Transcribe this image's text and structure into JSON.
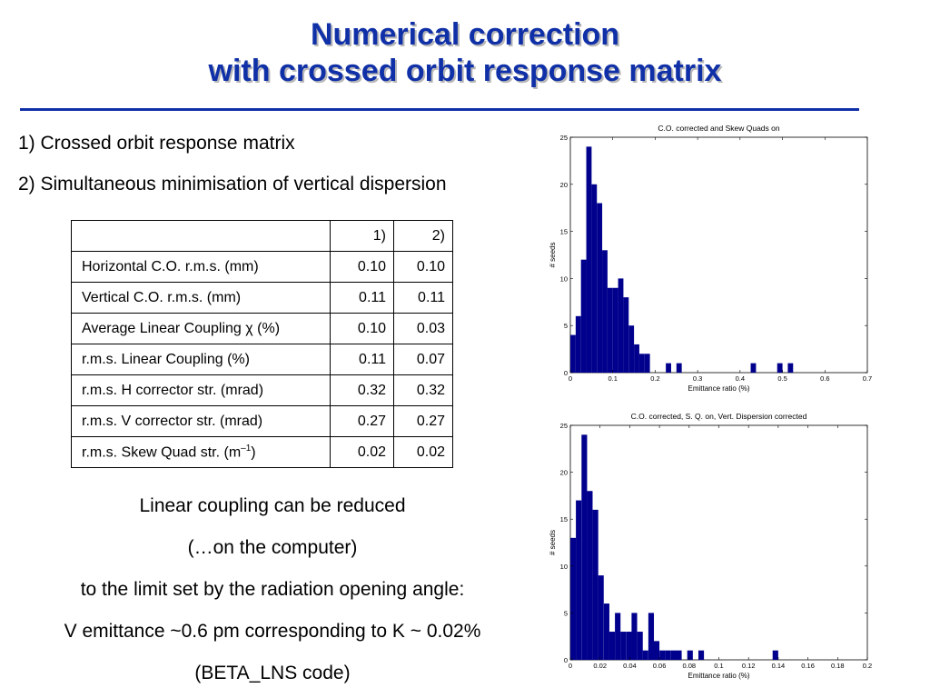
{
  "title": {
    "line1": "Numerical correction",
    "line2": "with crossed orbit response matrix"
  },
  "items": [
    "1) Crossed orbit response matrix",
    "2) Simultaneous minimisation of vertical dispersion"
  ],
  "table": {
    "headers": [
      "",
      "1)",
      "2)"
    ],
    "rows": [
      {
        "label": "Horizontal C.O. r.m.s. (mm)",
        "v1": "0.10",
        "v2": "0.10"
      },
      {
        "label": "Vertical C.O. r.m.s. (mm)",
        "v1": "0.11",
        "v2": "0.11"
      },
      {
        "label_pre": "Average Linear Coupling ",
        "label_sym": "χ",
        "label_post": " (%)",
        "v1": "0.10",
        "v2": "0.03"
      },
      {
        "label": "r.m.s. Linear Coupling (%)",
        "v1": "0.11",
        "v2": "0.07"
      },
      {
        "label": "r.m.s. H corrector str. (mrad)",
        "v1": "0.32",
        "v2": "0.32"
      },
      {
        "label": "r.m.s. V corrector str. (mrad)",
        "v1": "0.27",
        "v2": "0.27"
      },
      {
        "label_pre": "r.m.s. Skew Quad str. (m",
        "label_sup": "–1",
        "label_post": ")",
        "v1": "0.02",
        "v2": "0.02"
      }
    ]
  },
  "conclusion": [
    "Linear coupling can be reduced",
    "(…on the computer)",
    "to the limit set by the radiation opening angle:",
    "V emittance ~0.6 pm corresponding to K ~ 0.02%",
    "(BETA_LNS code)"
  ],
  "chart_data": [
    {
      "type": "bar",
      "title": "C.O. corrected and Skew Quads on",
      "xlabel": "Emittance ratio (%)",
      "ylabel": "# seeds",
      "xlim": [
        0,
        0.7
      ],
      "ylim": [
        0,
        25
      ],
      "xticks": [
        "0",
        "0.1",
        "0.2",
        "0.3",
        "0.4",
        "0.5",
        "0.6",
        "0.7"
      ],
      "yticks": [
        "0",
        "5",
        "10",
        "15",
        "20",
        "25"
      ],
      "bin_width": 0.0125,
      "bins": [
        {
          "x": 0.0063,
          "count": 4
        },
        {
          "x": 0.0188,
          "count": 6
        },
        {
          "x": 0.0313,
          "count": 12
        },
        {
          "x": 0.0438,
          "count": 24
        },
        {
          "x": 0.0563,
          "count": 20
        },
        {
          "x": 0.0688,
          "count": 18
        },
        {
          "x": 0.0813,
          "count": 13
        },
        {
          "x": 0.0938,
          "count": 9
        },
        {
          "x": 0.1063,
          "count": 9
        },
        {
          "x": 0.1188,
          "count": 10
        },
        {
          "x": 0.1313,
          "count": 8
        },
        {
          "x": 0.1438,
          "count": 5
        },
        {
          "x": 0.1563,
          "count": 3
        },
        {
          "x": 0.1688,
          "count": 2
        },
        {
          "x": 0.1813,
          "count": 2
        },
        {
          "x": 0.2313,
          "count": 1
        },
        {
          "x": 0.2563,
          "count": 1
        },
        {
          "x": 0.4313,
          "count": 1
        },
        {
          "x": 0.4938,
          "count": 1
        },
        {
          "x": 0.5188,
          "count": 1
        }
      ],
      "bar_color": "#00008c"
    },
    {
      "type": "bar",
      "title": "C.O. corrected, S. Q. on, Vert. Dispersion corrected",
      "xlabel": "Emittance ratio (%)",
      "ylabel": "# seeds",
      "xlim": [
        0,
        0.2
      ],
      "ylim": [
        0,
        25
      ],
      "xticks": [
        "0",
        "0.02",
        "0.04",
        "0.06",
        "0.08",
        "0.1",
        "0.12",
        "0.14",
        "0.16",
        "0.18",
        "0.2"
      ],
      "yticks": [
        "0",
        "5",
        "10",
        "15",
        "20",
        "25"
      ],
      "bin_width": 0.00375,
      "bins": [
        {
          "x": 0.0019,
          "count": 13
        },
        {
          "x": 0.0056,
          "count": 17
        },
        {
          "x": 0.0094,
          "count": 24
        },
        {
          "x": 0.0131,
          "count": 18
        },
        {
          "x": 0.0169,
          "count": 16
        },
        {
          "x": 0.0206,
          "count": 9
        },
        {
          "x": 0.0244,
          "count": 6
        },
        {
          "x": 0.0281,
          "count": 3
        },
        {
          "x": 0.0319,
          "count": 5
        },
        {
          "x": 0.0356,
          "count": 3
        },
        {
          "x": 0.0394,
          "count": 3
        },
        {
          "x": 0.0431,
          "count": 5
        },
        {
          "x": 0.0469,
          "count": 3
        },
        {
          "x": 0.0506,
          "count": 1
        },
        {
          "x": 0.0544,
          "count": 5
        },
        {
          "x": 0.0581,
          "count": 2
        },
        {
          "x": 0.0619,
          "count": 1
        },
        {
          "x": 0.0656,
          "count": 1
        },
        {
          "x": 0.0694,
          "count": 1
        },
        {
          "x": 0.0731,
          "count": 1
        },
        {
          "x": 0.0806,
          "count": 1
        },
        {
          "x": 0.0881,
          "count": 1
        },
        {
          "x": 0.1381,
          "count": 1
        }
      ],
      "bar_color": "#00008c"
    }
  ]
}
